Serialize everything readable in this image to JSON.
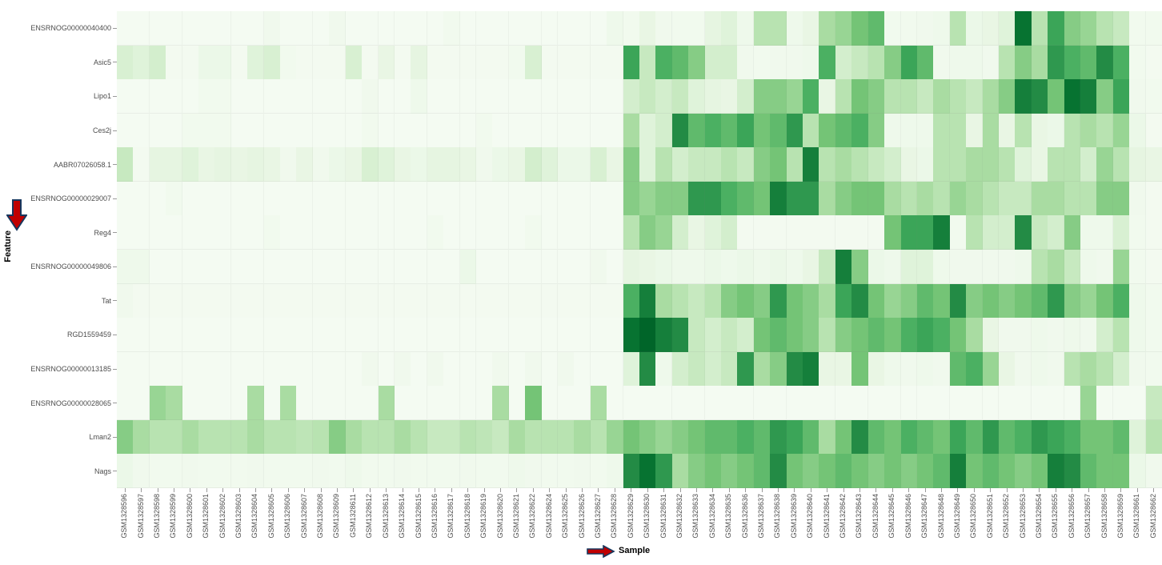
{
  "figure": {
    "background": "#ffffff",
    "plot_background": "#f7fcf5",
    "tick_color": "#9a9a9a",
    "tick_label_color": "#4d4d4d",
    "annotations": {
      "y_axis_arrow": {
        "name": "down-arrow",
        "fill": "#c00000",
        "outline": "#17375e"
      },
      "x_axis_arrow": {
        "name": "right-arrow",
        "fill": "#c00000",
        "outline": "#17375e"
      }
    }
  },
  "chart_data": {
    "type": "heatmap",
    "title": "",
    "xlabel": "Sample",
    "ylabel": "Feature",
    "grid": true,
    "legend": "none",
    "value_range": [
      0,
      1
    ],
    "colorscale_name": "Greens (white = low, dark green = high)",
    "colorscale_stops": [
      "#f7fcf5",
      "#e5f5e0",
      "#c7e9c0",
      "#a1d99b",
      "#74c476",
      "#41ab5d",
      "#238b45",
      "#006d2c",
      "#00441b"
    ],
    "x": [
      "GSM1328596",
      "GSM1328597",
      "GSM1328598",
      "GSM1328599",
      "GSM1328600",
      "GSM1328601",
      "GSM1328602",
      "GSM1328603",
      "GSM1328604",
      "GSM1328605",
      "GSM1328606",
      "GSM1328607",
      "GSM1328608",
      "GSM1328609",
      "GSM1328611",
      "GSM1328612",
      "GSM1328613",
      "GSM1328614",
      "GSM1328615",
      "GSM1328616",
      "GSM1328617",
      "GSM1328618",
      "GSM1328619",
      "GSM1328620",
      "GSM1328621",
      "GSM1328622",
      "GSM1328624",
      "GSM1328625",
      "GSM1328626",
      "GSM1328627",
      "GSM1328628",
      "GSM1328629",
      "GSM1328630",
      "GSM1328631",
      "GSM1328632",
      "GSM1328633",
      "GSM1328634",
      "GSM1328635",
      "GSM1328636",
      "GSM1328637",
      "GSM1328638",
      "GSM1328639",
      "GSM1328640",
      "GSM1328641",
      "GSM1328642",
      "GSM1328643",
      "GSM1328644",
      "GSM1328645",
      "GSM1328646",
      "GSM1328647",
      "GSM1328648",
      "GSM1328649",
      "GSM1328650",
      "GSM1328651",
      "GSM1328652",
      "GSM1328653",
      "GSM1328654",
      "GSM1328655",
      "GSM1328656",
      "GSM1328657",
      "GSM1328658",
      "GSM1328659",
      "GSM1328661",
      "GSM1328662"
    ],
    "y": [
      "ENSRNOG00000040400",
      "Asic5",
      "Lipo1",
      "Ces2j",
      "AABR07026058.1",
      "ENSRNOG00000029007",
      "Reg4",
      "ENSRNOG00000049806",
      "Tat",
      "RGD1559459",
      "ENSRNOG00000013185",
      "ENSRNOG00000028065",
      "Lman2",
      "Nags"
    ],
    "values": [
      [
        0.02,
        0.02,
        0.02,
        0.02,
        0.02,
        0.02,
        0.02,
        0.02,
        0.02,
        0.05,
        0.02,
        0.02,
        0.02,
        0.05,
        0.02,
        0.02,
        0.02,
        0.02,
        0.02,
        0.02,
        0.04,
        0.02,
        0.02,
        0.02,
        0.02,
        0.02,
        0.02,
        0.02,
        0.02,
        0.02,
        0.06,
        0.04,
        0.1,
        0.05,
        0.04,
        0.04,
        0.12,
        0.15,
        0.06,
        0.3,
        0.3,
        0.06,
        0.1,
        0.35,
        0.4,
        0.5,
        0.55,
        0.04,
        0.04,
        0.05,
        0.06,
        0.3,
        0.08,
        0.1,
        0.15,
        0.85,
        0.3,
        0.65,
        0.45,
        0.4,
        0.3,
        0.25,
        0.04,
        0.04
      ],
      [
        0.18,
        0.15,
        0.2,
        0.03,
        0.03,
        0.08,
        0.08,
        0.03,
        0.15,
        0.18,
        0.04,
        0.03,
        0.03,
        0.03,
        0.18,
        0.03,
        0.1,
        0.03,
        0.12,
        0.03,
        0.03,
        0.03,
        0.03,
        0.03,
        0.04,
        0.18,
        0.03,
        0.03,
        0.03,
        0.03,
        0.03,
        0.65,
        0.25,
        0.6,
        0.55,
        0.45,
        0.2,
        0.2,
        0.05,
        0.04,
        0.05,
        0.05,
        0.06,
        0.6,
        0.2,
        0.25,
        0.3,
        0.45,
        0.65,
        0.55,
        0.05,
        0.06,
        0.06,
        0.05,
        0.3,
        0.45,
        0.35,
        0.7,
        0.6,
        0.55,
        0.75,
        0.6,
        0.04,
        0.03
      ],
      [
        0.02,
        0.02,
        0.02,
        0.02,
        0.02,
        0.04,
        0.04,
        0.02,
        0.02,
        0.02,
        0.02,
        0.02,
        0.02,
        0.02,
        0.02,
        0.05,
        0.02,
        0.02,
        0.06,
        0.02,
        0.02,
        0.02,
        0.02,
        0.02,
        0.02,
        0.02,
        0.02,
        0.02,
        0.02,
        0.02,
        0.02,
        0.2,
        0.25,
        0.2,
        0.25,
        0.15,
        0.12,
        0.1,
        0.2,
        0.45,
        0.45,
        0.4,
        0.6,
        0.1,
        0.3,
        0.5,
        0.45,
        0.3,
        0.3,
        0.25,
        0.35,
        0.3,
        0.25,
        0.35,
        0.45,
        0.8,
        0.75,
        0.5,
        0.85,
        0.8,
        0.45,
        0.65,
        0.05,
        0.04
      ],
      [
        0.02,
        0.02,
        0.02,
        0.02,
        0.04,
        0.04,
        0.04,
        0.02,
        0.02,
        0.02,
        0.02,
        0.02,
        0.02,
        0.02,
        0.02,
        0.04,
        0.02,
        0.02,
        0.02,
        0.02,
        0.02,
        0.02,
        0.04,
        0.02,
        0.02,
        0.02,
        0.02,
        0.02,
        0.02,
        0.02,
        0.02,
        0.35,
        0.15,
        0.2,
        0.75,
        0.55,
        0.6,
        0.55,
        0.65,
        0.5,
        0.55,
        0.7,
        0.3,
        0.5,
        0.55,
        0.6,
        0.45,
        0.06,
        0.06,
        0.06,
        0.3,
        0.3,
        0.1,
        0.35,
        0.1,
        0.3,
        0.1,
        0.08,
        0.3,
        0.35,
        0.3,
        0.4,
        0.08,
        0.03
      ],
      [
        0.25,
        0.03,
        0.12,
        0.12,
        0.15,
        0.1,
        0.12,
        0.1,
        0.12,
        0.1,
        0.05,
        0.1,
        0.05,
        0.08,
        0.1,
        0.18,
        0.15,
        0.1,
        0.08,
        0.12,
        0.12,
        0.1,
        0.05,
        0.08,
        0.1,
        0.2,
        0.15,
        0.08,
        0.08,
        0.18,
        0.1,
        0.45,
        0.15,
        0.3,
        0.2,
        0.25,
        0.25,
        0.3,
        0.25,
        0.45,
        0.5,
        0.3,
        0.8,
        0.3,
        0.35,
        0.3,
        0.25,
        0.2,
        0.1,
        0.08,
        0.3,
        0.3,
        0.35,
        0.35,
        0.3,
        0.15,
        0.1,
        0.3,
        0.3,
        0.2,
        0.4,
        0.3,
        0.12,
        0.1
      ],
      [
        0.02,
        0.02,
        0.02,
        0.04,
        0.02,
        0.02,
        0.02,
        0.02,
        0.02,
        0.02,
        0.02,
        0.02,
        0.02,
        0.02,
        0.02,
        0.02,
        0.02,
        0.02,
        0.02,
        0.02,
        0.02,
        0.02,
        0.02,
        0.02,
        0.02,
        0.02,
        0.02,
        0.02,
        0.02,
        0.02,
        0.02,
        0.45,
        0.4,
        0.45,
        0.45,
        0.7,
        0.7,
        0.6,
        0.55,
        0.5,
        0.8,
        0.7,
        0.7,
        0.35,
        0.45,
        0.5,
        0.5,
        0.35,
        0.3,
        0.35,
        0.3,
        0.4,
        0.35,
        0.3,
        0.25,
        0.25,
        0.35,
        0.35,
        0.3,
        0.3,
        0.45,
        0.45,
        0.05,
        0.03
      ],
      [
        0.02,
        0.02,
        0.02,
        0.02,
        0.02,
        0.02,
        0.02,
        0.02,
        0.02,
        0.04,
        0.02,
        0.02,
        0.02,
        0.02,
        0.02,
        0.02,
        0.02,
        0.02,
        0.02,
        0.04,
        0.02,
        0.02,
        0.02,
        0.02,
        0.02,
        0.04,
        0.02,
        0.02,
        0.02,
        0.02,
        0.02,
        0.3,
        0.45,
        0.4,
        0.2,
        0.1,
        0.15,
        0.2,
        0.03,
        0.03,
        0.03,
        0.03,
        0.03,
        0.03,
        0.03,
        0.03,
        0.03,
        0.5,
        0.65,
        0.65,
        0.8,
        0.04,
        0.3,
        0.2,
        0.2,
        0.75,
        0.25,
        0.2,
        0.45,
        0.06,
        0.06,
        0.18,
        0.04,
        0.03
      ],
      [
        0.06,
        0.06,
        0.02,
        0.02,
        0.02,
        0.02,
        0.02,
        0.02,
        0.02,
        0.02,
        0.02,
        0.02,
        0.02,
        0.02,
        0.02,
        0.02,
        0.02,
        0.02,
        0.02,
        0.02,
        0.02,
        0.08,
        0.02,
        0.02,
        0.02,
        0.02,
        0.02,
        0.02,
        0.02,
        0.05,
        0.02,
        0.12,
        0.1,
        0.08,
        0.06,
        0.06,
        0.08,
        0.06,
        0.08,
        0.06,
        0.08,
        0.06,
        0.1,
        0.25,
        0.8,
        0.45,
        0.08,
        0.06,
        0.15,
        0.15,
        0.06,
        0.05,
        0.05,
        0.05,
        0.05,
        0.06,
        0.3,
        0.35,
        0.25,
        0.06,
        0.05,
        0.4,
        0.04,
        0.03
      ],
      [
        0.05,
        0.03,
        0.03,
        0.03,
        0.03,
        0.03,
        0.03,
        0.03,
        0.03,
        0.03,
        0.03,
        0.03,
        0.03,
        0.03,
        0.03,
        0.03,
        0.03,
        0.03,
        0.03,
        0.03,
        0.03,
        0.03,
        0.03,
        0.03,
        0.03,
        0.03,
        0.03,
        0.03,
        0.03,
        0.03,
        0.03,
        0.6,
        0.8,
        0.35,
        0.3,
        0.25,
        0.3,
        0.45,
        0.5,
        0.45,
        0.7,
        0.5,
        0.45,
        0.35,
        0.65,
        0.75,
        0.5,
        0.4,
        0.45,
        0.55,
        0.5,
        0.75,
        0.45,
        0.5,
        0.45,
        0.5,
        0.55,
        0.7,
        0.45,
        0.4,
        0.5,
        0.6,
        0.06,
        0.04
      ],
      [
        0.02,
        0.02,
        0.02,
        0.02,
        0.02,
        0.02,
        0.02,
        0.02,
        0.02,
        0.02,
        0.02,
        0.02,
        0.02,
        0.02,
        0.02,
        0.02,
        0.02,
        0.02,
        0.02,
        0.02,
        0.02,
        0.02,
        0.02,
        0.02,
        0.02,
        0.02,
        0.02,
        0.02,
        0.02,
        0.02,
        0.02,
        0.85,
        0.9,
        0.8,
        0.75,
        0.25,
        0.2,
        0.25,
        0.2,
        0.5,
        0.55,
        0.5,
        0.45,
        0.3,
        0.45,
        0.5,
        0.55,
        0.5,
        0.6,
        0.65,
        0.6,
        0.5,
        0.35,
        0.1,
        0.05,
        0.05,
        0.06,
        0.05,
        0.06,
        0.05,
        0.2,
        0.3,
        0.06,
        0.04
      ],
      [
        0.02,
        0.02,
        0.02,
        0.02,
        0.02,
        0.02,
        0.02,
        0.02,
        0.02,
        0.02,
        0.02,
        0.02,
        0.02,
        0.02,
        0.02,
        0.05,
        0.02,
        0.05,
        0.02,
        0.05,
        0.02,
        0.02,
        0.02,
        0.05,
        0.02,
        0.05,
        0.02,
        0.05,
        0.02,
        0.02,
        0.02,
        0.15,
        0.75,
        0.06,
        0.2,
        0.25,
        0.2,
        0.25,
        0.7,
        0.35,
        0.45,
        0.75,
        0.8,
        0.1,
        0.1,
        0.5,
        0.1,
        0.06,
        0.05,
        0.06,
        0.05,
        0.55,
        0.6,
        0.4,
        0.1,
        0.05,
        0.06,
        0.05,
        0.3,
        0.35,
        0.3,
        0.2,
        0.05,
        0.04
      ],
      [
        0.02,
        0.02,
        0.4,
        0.35,
        0.02,
        0.02,
        0.02,
        0.02,
        0.35,
        0.02,
        0.35,
        0.02,
        0.02,
        0.02,
        0.02,
        0.02,
        0.35,
        0.02,
        0.02,
        0.02,
        0.02,
        0.02,
        0.02,
        0.35,
        0.02,
        0.5,
        0.02,
        0.02,
        0.02,
        0.35,
        0.02,
        0.02,
        0.02,
        0.02,
        0.02,
        0.02,
        0.02,
        0.02,
        0.02,
        0.02,
        0.02,
        0.02,
        0.02,
        0.02,
        0.02,
        0.02,
        0.02,
        0.02,
        0.02,
        0.02,
        0.02,
        0.02,
        0.02,
        0.02,
        0.02,
        0.02,
        0.02,
        0.02,
        0.02,
        0.4,
        0.02,
        0.02,
        0.02,
        0.25
      ],
      [
        0.45,
        0.35,
        0.3,
        0.3,
        0.35,
        0.3,
        0.3,
        0.3,
        0.35,
        0.3,
        0.3,
        0.28,
        0.3,
        0.45,
        0.35,
        0.3,
        0.3,
        0.35,
        0.3,
        0.25,
        0.25,
        0.3,
        0.28,
        0.25,
        0.35,
        0.3,
        0.3,
        0.3,
        0.35,
        0.3,
        0.4,
        0.5,
        0.45,
        0.4,
        0.45,
        0.5,
        0.55,
        0.55,
        0.6,
        0.55,
        0.7,
        0.65,
        0.55,
        0.35,
        0.5,
        0.75,
        0.55,
        0.5,
        0.6,
        0.55,
        0.5,
        0.65,
        0.55,
        0.7,
        0.55,
        0.6,
        0.7,
        0.65,
        0.6,
        0.5,
        0.5,
        0.55,
        0.15,
        0.3
      ],
      [
        0.08,
        0.05,
        0.04,
        0.04,
        0.05,
        0.04,
        0.04,
        0.04,
        0.05,
        0.04,
        0.04,
        0.04,
        0.05,
        0.04,
        0.06,
        0.04,
        0.04,
        0.05,
        0.04,
        0.04,
        0.04,
        0.05,
        0.04,
        0.04,
        0.06,
        0.05,
        0.04,
        0.04,
        0.05,
        0.04,
        0.06,
        0.75,
        0.85,
        0.7,
        0.35,
        0.45,
        0.5,
        0.45,
        0.5,
        0.55,
        0.75,
        0.5,
        0.45,
        0.5,
        0.55,
        0.5,
        0.45,
        0.5,
        0.45,
        0.5,
        0.55,
        0.8,
        0.5,
        0.55,
        0.5,
        0.45,
        0.5,
        0.8,
        0.75,
        0.55,
        0.5,
        0.5,
        0.08,
        0.05
      ]
    ]
  }
}
